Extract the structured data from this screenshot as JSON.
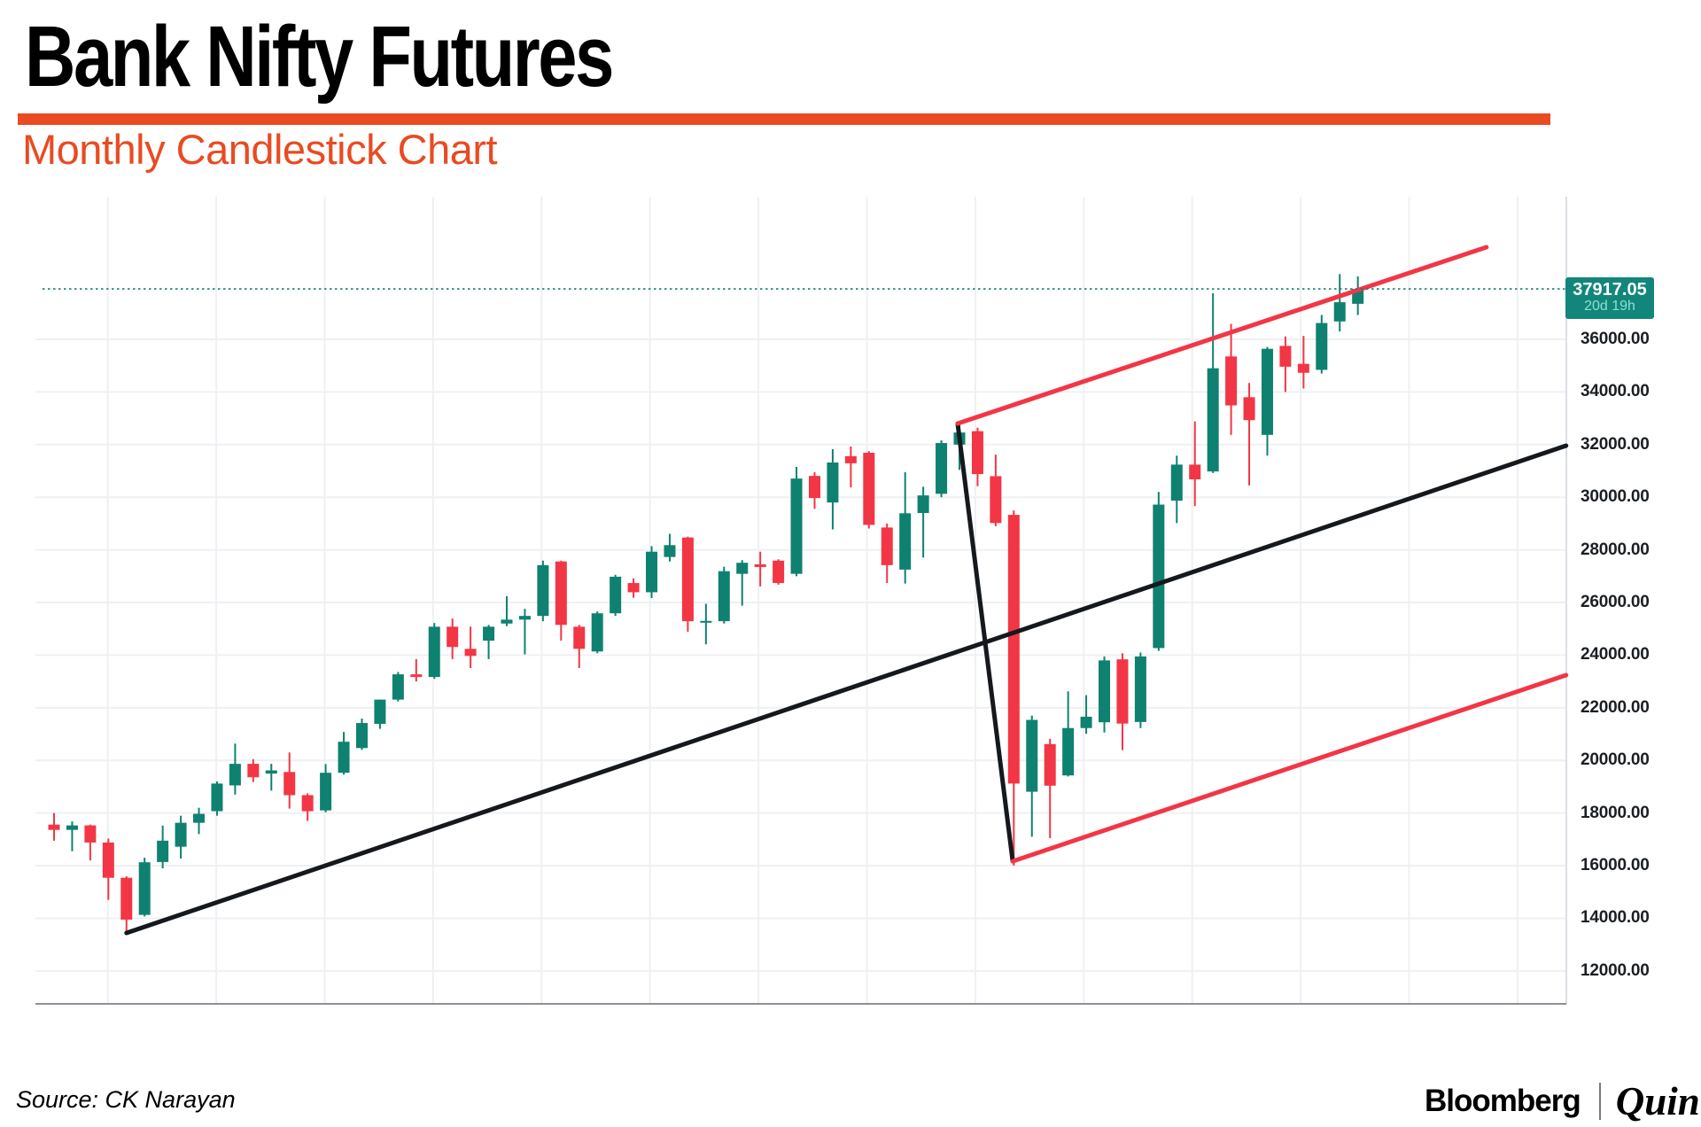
{
  "header": {
    "title": "Bank Nifty Futures",
    "subtitle": "Monthly Candlestick Chart"
  },
  "footer": {
    "source": "Source: CK Narayan",
    "brand": {
      "bloomberg": "Bloomberg",
      "separator": "|",
      "quint": "Quint"
    }
  },
  "colors": {
    "accent_orange": "#e84b22",
    "candle_up": "#0f8170",
    "candle_down": "#f23645",
    "trendline_black": "#15191d",
    "trendline_red": "#f23645",
    "last_price_line": "#0f8170",
    "badge_background": "#12867a",
    "badge_price_text": "#ffffff",
    "badge_countdown_text": "#8ce0d2",
    "grid": "#eef0f3",
    "axis_border": "#d1d4dc",
    "bottom_border": "#6a6d78",
    "axis_text": "#1b1f23"
  },
  "chart_data": {
    "type": "candlestick",
    "title": "Bank Nifty Futures",
    "subtitle": "Monthly Candlestick Chart",
    "timeframe": "Monthly",
    "up_color": "#0f8170",
    "down_color": "#f23645",
    "y_axis": {
      "side": "right",
      "ylim": [
        10750,
        41420
      ],
      "grid": true,
      "tick_values": [
        36000,
        34000,
        32000,
        30000,
        28000,
        26000,
        24000,
        22000,
        20000,
        18000,
        16000,
        14000,
        12000
      ],
      "tick_labels": [
        "36000.00",
        "34000.00",
        "32000.00",
        "30000.00",
        "28000.00",
        "26000.00",
        "24000.00",
        "22000.00",
        "20000.00",
        "18000.00",
        "16000.00",
        "14000.00",
        "12000.00"
      ]
    },
    "x_axis": {
      "labels_visible": false,
      "vertical_grid": true
    },
    "last_price": {
      "value": 37917.05,
      "label": "37917.05",
      "countdown": "20d 19h"
    },
    "candles_ohlc": [
      [
        17560,
        18000,
        16950,
        17360
      ],
      [
        17360,
        17680,
        16550,
        17530
      ],
      [
        17530,
        17560,
        16200,
        16880
      ],
      [
        16880,
        17030,
        14700,
        15540
      ],
      [
        15540,
        15600,
        13410,
        13950
      ],
      [
        14130,
        16300,
        14070,
        16130
      ],
      [
        16140,
        17520,
        15900,
        16950
      ],
      [
        16720,
        17900,
        16270,
        17630
      ],
      [
        17630,
        18200,
        17200,
        17970
      ],
      [
        18070,
        19200,
        17900,
        19120
      ],
      [
        19050,
        20640,
        18700,
        19870
      ],
      [
        19870,
        20050,
        19180,
        19360
      ],
      [
        19500,
        19870,
        18850,
        19620
      ],
      [
        19560,
        20300,
        18170,
        18680
      ],
      [
        18680,
        18750,
        17700,
        18070
      ],
      [
        18100,
        19860,
        18030,
        19530
      ],
      [
        19530,
        21080,
        19460,
        20710
      ],
      [
        20470,
        21590,
        20400,
        21420
      ],
      [
        21390,
        22310,
        21200,
        22310
      ],
      [
        22310,
        23360,
        22240,
        23270
      ],
      [
        23270,
        23850,
        23000,
        23170
      ],
      [
        23170,
        25220,
        23100,
        25080
      ],
      [
        25080,
        25390,
        23850,
        24310
      ],
      [
        24240,
        25080,
        23510,
        23970
      ],
      [
        24550,
        25150,
        23850,
        25080
      ],
      [
        25200,
        26240,
        25100,
        25350
      ],
      [
        25350,
        25760,
        24030,
        25490
      ],
      [
        25490,
        27590,
        25290,
        27420
      ],
      [
        27560,
        27590,
        24550,
        25150
      ],
      [
        25080,
        25150,
        23510,
        24240
      ],
      [
        24140,
        25660,
        24070,
        25590
      ],
      [
        25590,
        27050,
        25490,
        26980
      ],
      [
        26740,
        26920,
        26180,
        26390
      ],
      [
        26390,
        28140,
        26170,
        27930
      ],
      [
        27730,
        28610,
        27560,
        28180
      ],
      [
        28470,
        28500,
        24890,
        25290
      ],
      [
        25250,
        25950,
        24410,
        25300
      ],
      [
        25290,
        27360,
        25200,
        27190
      ],
      [
        27090,
        27610,
        25880,
        27510
      ],
      [
        27450,
        27930,
        26610,
        27350
      ],
      [
        27590,
        27640,
        26680,
        26740
      ],
      [
        27090,
        31150,
        27000,
        30710
      ],
      [
        30810,
        30950,
        29560,
        29970
      ],
      [
        29800,
        31830,
        28780,
        31320
      ],
      [
        31560,
        31930,
        30370,
        31290
      ],
      [
        31690,
        31750,
        28810,
        28950
      ],
      [
        28850,
        29000,
        26740,
        27420
      ],
      [
        27250,
        30950,
        26720,
        29390
      ],
      [
        29400,
        30400,
        27710,
        30070
      ],
      [
        30130,
        32160,
        30000,
        32060
      ],
      [
        32000,
        32830,
        31040,
        32460
      ],
      [
        32510,
        32640,
        30420,
        30880
      ],
      [
        30800,
        31620,
        28900,
        29020
      ],
      [
        29330,
        29500,
        16000,
        19120
      ],
      [
        18810,
        21700,
        17100,
        21540
      ],
      [
        20620,
        20820,
        17050,
        19040
      ],
      [
        19430,
        22620,
        19390,
        21230
      ],
      [
        21230,
        22480,
        21010,
        21660
      ],
      [
        21450,
        23950,
        21060,
        23800
      ],
      [
        23840,
        24070,
        20390,
        21400
      ],
      [
        21460,
        24100,
        21230,
        23950
      ],
      [
        24270,
        30200,
        24160,
        29720
      ],
      [
        29870,
        31580,
        29020,
        31240
      ],
      [
        31240,
        32880,
        29660,
        30680
      ],
      [
        30980,
        37750,
        30920,
        34900
      ],
      [
        35350,
        36590,
        32370,
        33490
      ],
      [
        33800,
        34340,
        30450,
        32930
      ],
      [
        32370,
        35710,
        31580,
        35640
      ],
      [
        35750,
        36110,
        34000,
        34960
      ],
      [
        35070,
        36130,
        34130,
        34730
      ],
      [
        34840,
        36925,
        34700,
        36620
      ],
      [
        36680,
        38480,
        36300,
        37410
      ],
      [
        37350,
        38390,
        36925,
        37917
      ]
    ],
    "trend_lines": [
      {
        "name": "primary-ascending-trendline",
        "color": "#15191d",
        "width": 5,
        "points_index_price": [
          [
            4.0,
            13443
          ],
          [
            83.5,
            31960
          ]
        ]
      },
      {
        "name": "peak-to-trough-line",
        "color": "#15191d",
        "width": 5,
        "points_index_price": [
          [
            49.9,
            32801
          ],
          [
            52.94,
            16168
          ]
        ]
      },
      {
        "name": "channel-lower-line",
        "color": "#f23645",
        "width": 5,
        "points_index_price": [
          [
            52.94,
            16168
          ],
          [
            83.5,
            23241
          ]
        ]
      },
      {
        "name": "channel-upper-line",
        "color": "#f23645",
        "width": 5,
        "points_index_price": [
          [
            49.9,
            32801
          ],
          [
            79.1,
            39502
          ]
        ]
      }
    ]
  }
}
